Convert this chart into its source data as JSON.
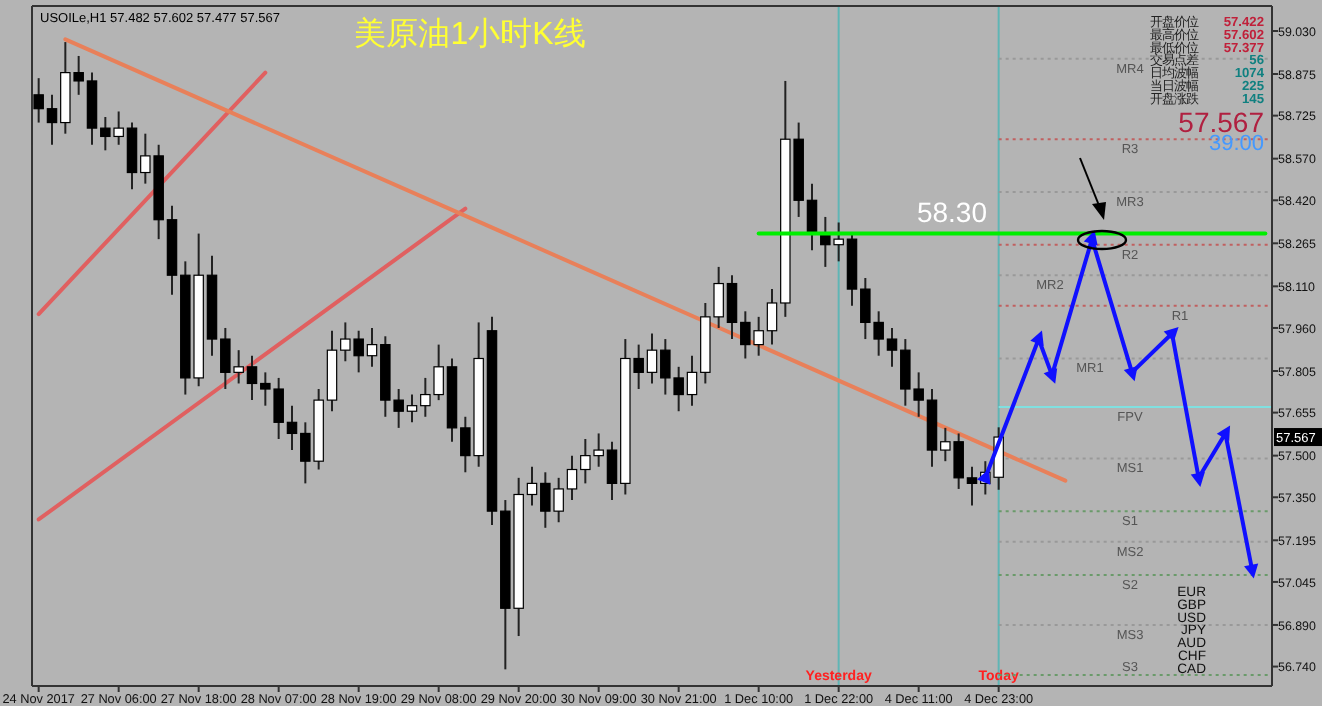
{
  "chart_data": {
    "type": "candlestick",
    "title": "美原油1小时K线",
    "categories": [
      "24 Nov 2017",
      null,
      null,
      null,
      null,
      null,
      "27 Nov 06:00",
      null,
      null,
      null,
      null,
      null,
      "27 Nov 18:00",
      null,
      null,
      null,
      null,
      null,
      "28 Nov 07:00",
      null,
      null,
      null,
      null,
      null,
      "28 Nov 19:00",
      null,
      null,
      null,
      null,
      null,
      "29 Nov 08:00",
      null,
      null,
      null,
      null,
      null,
      "29 Nov 20:00",
      null,
      null,
      null,
      null,
      null,
      "30 Nov 09:00",
      null,
      null,
      null,
      null,
      null,
      "30 Nov 21:00",
      null,
      null,
      null,
      null,
      null,
      "1 Dec 10:00",
      null,
      null,
      null,
      null,
      null,
      "1 Dec 22:00",
      null,
      null,
      null,
      null,
      null,
      "4 Dec 11:00",
      null,
      null,
      null,
      null,
      null,
      "4 Dec 23:00",
      null,
      null,
      null,
      null,
      null,
      null,
      null,
      null,
      null,
      null,
      null,
      null,
      null,
      null,
      null,
      null,
      null,
      null,
      null,
      null
    ],
    "ohlc": [
      [
        58.8,
        58.86,
        58.7,
        58.75
      ],
      [
        58.75,
        58.8,
        58.62,
        58.7
      ],
      [
        58.7,
        58.99,
        58.66,
        58.88
      ],
      [
        58.88,
        58.94,
        58.8,
        58.85
      ],
      [
        58.85,
        58.88,
        58.62,
        58.68
      ],
      [
        58.68,
        58.72,
        58.6,
        58.65
      ],
      [
        58.65,
        58.74,
        58.62,
        58.68
      ],
      [
        58.68,
        58.7,
        58.46,
        58.52
      ],
      [
        58.52,
        58.66,
        58.48,
        58.58
      ],
      [
        58.58,
        58.62,
        58.28,
        58.35
      ],
      [
        58.35,
        58.4,
        58.08,
        58.15
      ],
      [
        58.15,
        58.2,
        57.72,
        57.78
      ],
      [
        57.78,
        58.3,
        57.75,
        58.15
      ],
      [
        58.15,
        58.22,
        57.86,
        57.92
      ],
      [
        57.92,
        57.96,
        57.74,
        57.8
      ],
      [
        57.8,
        57.88,
        57.76,
        57.82
      ],
      [
        57.82,
        57.86,
        57.7,
        57.76
      ],
      [
        57.76,
        57.8,
        57.68,
        57.74
      ],
      [
        57.74,
        57.78,
        57.56,
        57.62
      ],
      [
        57.62,
        57.68,
        57.52,
        57.58
      ],
      [
        57.58,
        57.62,
        57.4,
        57.48
      ],
      [
        57.48,
        57.74,
        57.45,
        57.7
      ],
      [
        57.7,
        57.95,
        57.66,
        57.88
      ],
      [
        57.88,
        57.98,
        57.84,
        57.92
      ],
      [
        57.92,
        57.95,
        57.8,
        57.86
      ],
      [
        57.86,
        57.96,
        57.82,
        57.9
      ],
      [
        57.9,
        57.93,
        57.64,
        57.7
      ],
      [
        57.7,
        57.74,
        57.6,
        57.66
      ],
      [
        57.66,
        57.72,
        57.62,
        57.68
      ],
      [
        57.68,
        57.78,
        57.64,
        57.72
      ],
      [
        57.72,
        57.9,
        57.7,
        57.82
      ],
      [
        57.82,
        57.85,
        57.55,
        57.6
      ],
      [
        57.6,
        57.64,
        57.44,
        57.5
      ],
      [
        57.5,
        57.98,
        57.46,
        57.85
      ],
      [
        57.95,
        58.0,
        57.25,
        57.3
      ],
      [
        57.3,
        57.34,
        56.73,
        56.95
      ],
      [
        56.95,
        57.42,
        56.85,
        57.36
      ],
      [
        57.36,
        57.46,
        57.32,
        57.4
      ],
      [
        57.4,
        57.44,
        57.24,
        57.3
      ],
      [
        57.3,
        57.42,
        57.26,
        57.38
      ],
      [
        57.38,
        57.5,
        57.34,
        57.45
      ],
      [
        57.45,
        57.56,
        57.4,
        57.5
      ],
      [
        57.5,
        57.58,
        57.46,
        57.52
      ],
      [
        57.52,
        57.55,
        57.34,
        57.4
      ],
      [
        57.4,
        57.92,
        57.36,
        57.85
      ],
      [
        57.85,
        57.9,
        57.74,
        57.8
      ],
      [
        57.8,
        57.94,
        57.76,
        57.88
      ],
      [
        57.88,
        57.92,
        57.72,
        57.78
      ],
      [
        57.78,
        57.82,
        57.66,
        57.72
      ],
      [
        57.72,
        57.86,
        57.68,
        57.8
      ],
      [
        57.8,
        58.05,
        57.76,
        58.0
      ],
      [
        58.0,
        58.18,
        57.96,
        58.12
      ],
      [
        58.12,
        58.15,
        57.92,
        57.98
      ],
      [
        57.98,
        58.02,
        57.85,
        57.9
      ],
      [
        57.9,
        58.0,
        57.86,
        57.95
      ],
      [
        57.95,
        58.1,
        57.9,
        58.05
      ],
      [
        58.05,
        58.85,
        58.0,
        58.64
      ],
      [
        58.64,
        58.7,
        58.36,
        58.42
      ],
      [
        58.42,
        58.48,
        58.24,
        58.3
      ],
      [
        58.3,
        58.36,
        58.18,
        58.26
      ],
      [
        58.26,
        58.34,
        58.2,
        58.28
      ],
      [
        58.28,
        58.3,
        58.04,
        58.1
      ],
      [
        58.1,
        58.14,
        57.92,
        57.98
      ],
      [
        57.98,
        58.02,
        57.86,
        57.92
      ],
      [
        57.92,
        57.96,
        57.82,
        57.88
      ],
      [
        57.88,
        57.92,
        57.68,
        57.74
      ],
      [
        57.74,
        57.8,
        57.64,
        57.7
      ],
      [
        57.7,
        57.74,
        57.46,
        57.52
      ],
      [
        57.52,
        57.6,
        57.48,
        57.55
      ],
      [
        57.55,
        57.58,
        57.38,
        57.42
      ],
      [
        57.42,
        57.46,
        57.32,
        57.4
      ],
      [
        57.4,
        57.48,
        57.36,
        57.44
      ],
      [
        57.422,
        57.602,
        57.377,
        57.567
      ],
      null,
      null,
      null,
      null,
      null,
      null,
      null,
      null,
      null,
      null,
      null,
      null,
      null,
      null,
      null,
      null,
      null,
      null,
      null,
      null
    ],
    "series": [
      {
        "type": "line",
        "color": "#e06060",
        "values": [
          58.01,
          null,
          null,
          null,
          null,
          null,
          null,
          null,
          null,
          null,
          null,
          null,
          null,
          null,
          null,
          null,
          null,
          58.88,
          null,
          null,
          null,
          null,
          null,
          null,
          null,
          null,
          null,
          null,
          null,
          null,
          null,
          null,
          null,
          null,
          null,
          null,
          null,
          null,
          null,
          null,
          null,
          null,
          null,
          null,
          null,
          null,
          null,
          null,
          null,
          null,
          null,
          null,
          null,
          null,
          null,
          null,
          null,
          null,
          null,
          null,
          null,
          null,
          null,
          null,
          null,
          null,
          null,
          null,
          null,
          null,
          null,
          null,
          null,
          null,
          null,
          null,
          null,
          null,
          null,
          null,
          null,
          null,
          null,
          null,
          null,
          null,
          null,
          null,
          null,
          null,
          null,
          null,
          null
        ]
      },
      {
        "type": "line",
        "color": "#e06060",
        "values": [
          57.27,
          null,
          null,
          null,
          null,
          null,
          null,
          null,
          null,
          null,
          null,
          null,
          null,
          null,
          null,
          null,
          null,
          null,
          null,
          null,
          null,
          null,
          null,
          null,
          null,
          null,
          null,
          null,
          null,
          null,
          null,
          null,
          58.39,
          null,
          null,
          null,
          null,
          null,
          null,
          null,
          null,
          null,
          null,
          null,
          null,
          null,
          null,
          null,
          null,
          null,
          null,
          null,
          null,
          null,
          null,
          null,
          null,
          null,
          null,
          null,
          null,
          null,
          null,
          null,
          null,
          null,
          null,
          null,
          null,
          null,
          null,
          null,
          null,
          null,
          null,
          null,
          null,
          null,
          null,
          null,
          null,
          null,
          null,
          null,
          null,
          null,
          null,
          null,
          null,
          null,
          null,
          null,
          null
        ]
      },
      {
        "type": "line",
        "color": "#e8805a",
        "values": [
          null,
          null,
          59.0,
          null,
          null,
          null,
          null,
          null,
          null,
          null,
          null,
          null,
          null,
          null,
          null,
          null,
          null,
          null,
          null,
          null,
          null,
          null,
          null,
          null,
          null,
          null,
          null,
          null,
          null,
          null,
          null,
          null,
          null,
          null,
          null,
          null,
          null,
          null,
          null,
          null,
          null,
          null,
          null,
          null,
          null,
          null,
          null,
          null,
          null,
          null,
          null,
          null,
          null,
          null,
          null,
          null,
          null,
          null,
          null,
          null,
          null,
          null,
          null,
          null,
          null,
          null,
          null,
          null,
          null,
          null,
          null,
          null,
          null,
          null,
          null,
          null,
          null,
          57.41,
          null,
          null,
          null,
          null,
          null,
          null,
          null,
          null,
          null,
          null,
          null,
          null,
          null,
          null,
          null
        ]
      },
      {
        "type": "line",
        "color": "#00ee00",
        "values": [
          null,
          null,
          null,
          null,
          null,
          null,
          null,
          null,
          null,
          null,
          null,
          null,
          null,
          null,
          null,
          null,
          null,
          null,
          null,
          null,
          null,
          null,
          null,
          null,
          null,
          null,
          null,
          null,
          null,
          null,
          null,
          null,
          null,
          null,
          null,
          null,
          null,
          null,
          null,
          null,
          null,
          null,
          null,
          null,
          null,
          null,
          null,
          null,
          null,
          null,
          null,
          null,
          null,
          null,
          58.3,
          null,
          null,
          null,
          null,
          null,
          null,
          null,
          null,
          null,
          null,
          null,
          null,
          null,
          null,
          null,
          null,
          null,
          null,
          null,
          null,
          null,
          null,
          null,
          null,
          null,
          null,
          null,
          null,
          null,
          null,
          null,
          null,
          null,
          null,
          null,
          null,
          null,
          58.3
        ]
      },
      {
        "type": "line",
        "color": "#1010ff",
        "marker": "triangle",
        "values": [
          null,
          null,
          null,
          null,
          null,
          null,
          null,
          null,
          null,
          null,
          null,
          null,
          null,
          null,
          null,
          null,
          null,
          null,
          null,
          null,
          null,
          null,
          null,
          null,
          null,
          null,
          null,
          null,
          null,
          null,
          null,
          null,
          null,
          null,
          null,
          null,
          null,
          null,
          null,
          null,
          null,
          null,
          null,
          null,
          null,
          null,
          null,
          null,
          null,
          null,
          null,
          null,
          null,
          null,
          null,
          null,
          null,
          null,
          null,
          null,
          null,
          null,
          null,
          null,
          null,
          null,
          null,
          null,
          null,
          null,
          null,
          57.42,
          null,
          null,
          null,
          57.92,
          57.79,
          null,
          null,
          58.28,
          null,
          null,
          57.8,
          null,
          null,
          57.94,
          null,
          57.42,
          null,
          57.58,
          null,
          57.09,
          null
        ]
      }
    ],
    "ylim": [
      56.67,
      59.12
    ],
    "yticks": [
      {
        "value": 59.03,
        "label": "59.030"
      },
      {
        "value": 58.875,
        "label": "58.875"
      },
      {
        "value": 58.725,
        "label": "58.725"
      },
      {
        "value": 58.57,
        "label": "58.570"
      },
      {
        "value": 58.42,
        "label": "58.420"
      },
      {
        "value": 58.265,
        "label": "58.265"
      },
      {
        "value": 58.11,
        "label": "58.110"
      },
      {
        "value": 57.96,
        "label": "57.960"
      },
      {
        "value": 57.805,
        "label": "57.805"
      },
      {
        "value": 57.655,
        "label": "57.655"
      },
      {
        "value": 57.5,
        "label": "57.500"
      },
      {
        "value": 57.35,
        "label": "57.350"
      },
      {
        "value": 57.195,
        "label": "57.195"
      },
      {
        "value": 57.045,
        "label": "57.045"
      },
      {
        "value": 56.89,
        "label": "56.890"
      },
      {
        "value": 56.74,
        "label": "56.740"
      }
    ],
    "ref_lines": [
      {
        "axis": "x",
        "value": "1 Dec 22:00",
        "label": "Yesterday",
        "color": "#5fb5b5"
      },
      {
        "axis": "x",
        "value": "4 Dec 23:00",
        "label": "Today",
        "color": "#5fb5b5"
      },
      {
        "axis": "y",
        "value": 58.93,
        "label": "MR4",
        "color": "#999999",
        "line_style": "dotted"
      },
      {
        "axis": "y",
        "value": 58.64,
        "label": "R3",
        "color": "#c06060",
        "line_style": "dotted"
      },
      {
        "axis": "y",
        "value": 58.45,
        "label": "MR3",
        "color": "#999999",
        "line_style": "dotted"
      },
      {
        "axis": "y",
        "value": 58.26,
        "label": "R2",
        "color": "#c06060",
        "line_style": "dotted"
      },
      {
        "axis": "y",
        "value": 58.15,
        "label": "MR2",
        "color": "#999999",
        "line_style": "dotted"
      },
      {
        "axis": "y",
        "value": 58.04,
        "label": "R1",
        "color": "#c06060",
        "line_style": "dotted"
      },
      {
        "axis": "y",
        "value": 57.85,
        "label": "MR1",
        "color": "#999999",
        "line_style": "dotted"
      },
      {
        "axis": "y",
        "value": 57.675,
        "label": "FPV",
        "color": "#80e0e0",
        "line_style": "solid"
      },
      {
        "axis": "y",
        "value": 57.49,
        "label": "MS1",
        "color": "#999999",
        "line_style": "dotted"
      },
      {
        "axis": "y",
        "value": 57.3,
        "label": "S1",
        "color": "#6a9a6a",
        "line_style": "dotted"
      },
      {
        "axis": "y",
        "value": 57.19,
        "label": "MS2",
        "color": "#999999",
        "line_style": "dotted"
      },
      {
        "axis": "y",
        "value": 57.07,
        "label": "S2",
        "color": "#6a9a6a",
        "line_style": "dotted"
      },
      {
        "axis": "y",
        "value": 56.89,
        "label": "MS3",
        "color": "#999999",
        "line_style": "dotted"
      },
      {
        "axis": "y",
        "value": 56.71,
        "label": "S3",
        "color": "#6a9a6a",
        "line_style": "dotted"
      }
    ],
    "annotations": [
      "USOILe,H1  57.482 57.602 57.477 57.567",
      "开盘价位",
      "最高价位",
      "最低价位",
      "交易点差",
      "日均波幅",
      "当日波幅",
      "开盘涨跌",
      "57.422",
      "57.602",
      "57.377",
      "56",
      "1074",
      "225",
      "145",
      "57.567",
      "39:00",
      {
        "text": "58.30",
        "y": 58.3
      },
      {
        "text": "57.567",
        "y": 57.567
      },
      "EUR",
      "GBP",
      "USD",
      "JPY",
      "AUD",
      "CHF",
      "CAD"
    ]
  }
}
